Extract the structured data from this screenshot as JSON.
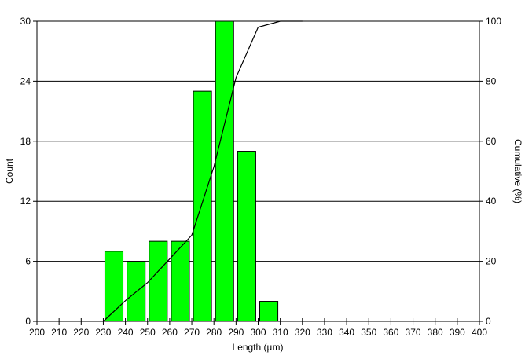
{
  "chart_data": {
    "type": "bar",
    "subtype": "histogram with cumulative line",
    "xlabel": "Length (µm)",
    "ylabel": "Count",
    "y2label": "Cumulative (%)",
    "xlim": [
      200,
      400
    ],
    "ylim": [
      0,
      30
    ],
    "y2lim": [
      0,
      100
    ],
    "xticks": [
      200,
      210,
      220,
      230,
      240,
      250,
      260,
      270,
      280,
      290,
      300,
      310,
      320,
      330,
      340,
      350,
      360,
      370,
      380,
      390,
      400
    ],
    "yticks": [
      0,
      6,
      12,
      18,
      24,
      30
    ],
    "y2ticks": [
      0,
      20,
      40,
      60,
      80,
      100
    ],
    "grid": "horizontal",
    "bin_width": 10,
    "bins": [
      {
        "start": 230,
        "end": 240,
        "count": 7
      },
      {
        "start": 240,
        "end": 250,
        "count": 6
      },
      {
        "start": 250,
        "end": 260,
        "count": 8
      },
      {
        "start": 260,
        "end": 270,
        "count": 8
      },
      {
        "start": 270,
        "end": 280,
        "count": 23
      },
      {
        "start": 280,
        "end": 290,
        "count": 30
      },
      {
        "start": 290,
        "end": 300,
        "count": 17
      },
      {
        "start": 300,
        "end": 310,
        "count": 2
      }
    ],
    "cumulative": {
      "x": [
        230,
        240,
        250,
        260,
        270,
        280,
        290,
        300,
        310
      ],
      "y": [
        0,
        6.9,
        12.9,
        20.8,
        28.7,
        51.5,
        81.2,
        98.0,
        100
      ]
    },
    "colors": {
      "bar": "#00ff00",
      "bar_edge": "#000000",
      "line": "#000000",
      "grid": "#000000"
    }
  }
}
